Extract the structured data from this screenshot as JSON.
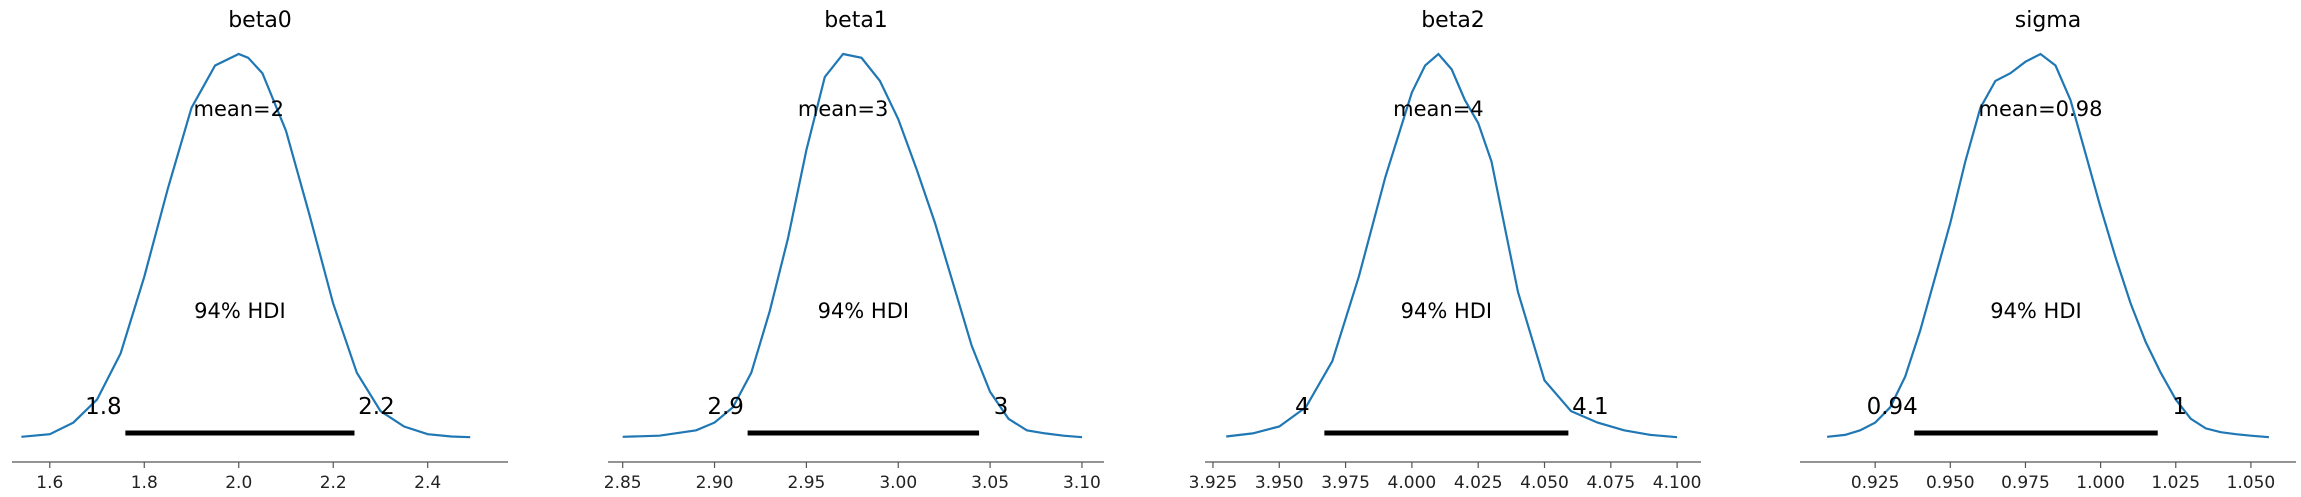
{
  "chart_data": [
    {
      "type": "density",
      "title": "beta0",
      "mean_label": "mean=2",
      "hdi_label": "94% HDI",
      "hdi": [
        1.76,
        2.245
      ],
      "hdi_text": [
        "1.8",
        "2.2"
      ],
      "xlim": [
        1.52,
        2.57
      ],
      "xticks": [
        1.6,
        1.8,
        2.0,
        2.2,
        2.4
      ],
      "xtick_labels": [
        "1.6",
        "1.8",
        "2.0",
        "2.2",
        "2.4"
      ],
      "kde": {
        "x": [
          1.54,
          1.6,
          1.65,
          1.7,
          1.75,
          1.8,
          1.85,
          1.9,
          1.95,
          2.0,
          2.02,
          2.05,
          2.1,
          2.15,
          2.2,
          2.25,
          2.3,
          2.35,
          2.4,
          2.45,
          2.49
        ],
        "y": [
          0.003,
          0.01,
          0.04,
          0.1,
          0.22,
          0.42,
          0.65,
          0.86,
          0.97,
          1.0,
          0.99,
          0.95,
          0.8,
          0.58,
          0.35,
          0.17,
          0.07,
          0.03,
          0.01,
          0.004,
          0.002
        ]
      }
    },
    {
      "type": "density",
      "title": "beta1",
      "mean_label": "mean=3",
      "hdi_label": "94% HDI",
      "hdi": [
        2.918,
        3.044
      ],
      "hdi_text": [
        "2.9",
        "3"
      ],
      "xlim": [
        2.842,
        3.112
      ],
      "xticks": [
        2.85,
        2.9,
        2.95,
        3.0,
        3.05,
        3.1
      ],
      "xtick_labels": [
        "2.85",
        "2.90",
        "2.95",
        "3.00",
        "3.05",
        "3.10"
      ],
      "kde": {
        "x": [
          2.85,
          2.87,
          2.89,
          2.9,
          2.91,
          2.92,
          2.93,
          2.94,
          2.95,
          2.96,
          2.97,
          2.98,
          2.99,
          3.0,
          3.01,
          3.02,
          3.03,
          3.04,
          3.05,
          3.06,
          3.07,
          3.08,
          3.09,
          3.1
        ],
        "y": [
          0.003,
          0.006,
          0.02,
          0.04,
          0.08,
          0.17,
          0.33,
          0.52,
          0.75,
          0.94,
          1.0,
          0.99,
          0.93,
          0.83,
          0.7,
          0.56,
          0.4,
          0.24,
          0.12,
          0.05,
          0.02,
          0.012,
          0.006,
          0.002
        ]
      }
    },
    {
      "type": "density",
      "title": "beta2",
      "mean_label": "mean=4",
      "hdi_label": "94% HDI",
      "hdi": [
        3.967,
        4.059
      ],
      "hdi_text": [
        "4",
        "4.1"
      ],
      "xlim": [
        3.922,
        4.109
      ],
      "xticks": [
        3.925,
        3.95,
        3.975,
        4.0,
        4.025,
        4.05,
        4.075,
        4.1
      ],
      "xtick_labels": [
        "3.925",
        "3.950",
        "3.975",
        "4.000",
        "4.025",
        "4.050",
        "4.075",
        "4.100"
      ],
      "kde": {
        "x": [
          3.93,
          3.94,
          3.95,
          3.96,
          3.97,
          3.98,
          3.99,
          4.0,
          4.005,
          4.01,
          4.015,
          4.02,
          4.025,
          4.03,
          4.035,
          4.04,
          4.05,
          4.06,
          4.07,
          4.08,
          4.09,
          4.1
        ],
        "y": [
          0.004,
          0.012,
          0.03,
          0.08,
          0.2,
          0.42,
          0.68,
          0.9,
          0.97,
          1.0,
          0.96,
          0.88,
          0.82,
          0.72,
          0.55,
          0.38,
          0.15,
          0.07,
          0.04,
          0.02,
          0.008,
          0.002
        ]
      }
    },
    {
      "type": "density",
      "title": "sigma",
      "mean_label": "mean=0.98",
      "hdi_label": "94% HDI",
      "hdi": [
        0.938,
        1.019
      ],
      "hdi_text": [
        "0.94",
        "1"
      ],
      "xlim": [
        0.9,
        1.065
      ],
      "xticks": [
        0.925,
        0.95,
        0.975,
        1.0,
        1.025,
        1.05
      ],
      "xtick_labels": [
        "0.925",
        "0.950",
        "0.975",
        "1.000",
        "1.025",
        "1.050"
      ],
      "kde": {
        "x": [
          0.909,
          0.915,
          0.92,
          0.925,
          0.93,
          0.935,
          0.94,
          0.945,
          0.95,
          0.955,
          0.96,
          0.965,
          0.97,
          0.975,
          0.98,
          0.985,
          0.99,
          0.995,
          1.0,
          1.005,
          1.01,
          1.015,
          1.02,
          1.025,
          1.03,
          1.035,
          1.04,
          1.045,
          1.05,
          1.056
        ],
        "y": [
          0.003,
          0.008,
          0.02,
          0.04,
          0.08,
          0.16,
          0.28,
          0.42,
          0.56,
          0.72,
          0.86,
          0.93,
          0.95,
          0.98,
          1.0,
          0.97,
          0.88,
          0.74,
          0.6,
          0.47,
          0.35,
          0.25,
          0.17,
          0.1,
          0.05,
          0.025,
          0.015,
          0.01,
          0.006,
          0.002
        ]
      }
    }
  ]
}
